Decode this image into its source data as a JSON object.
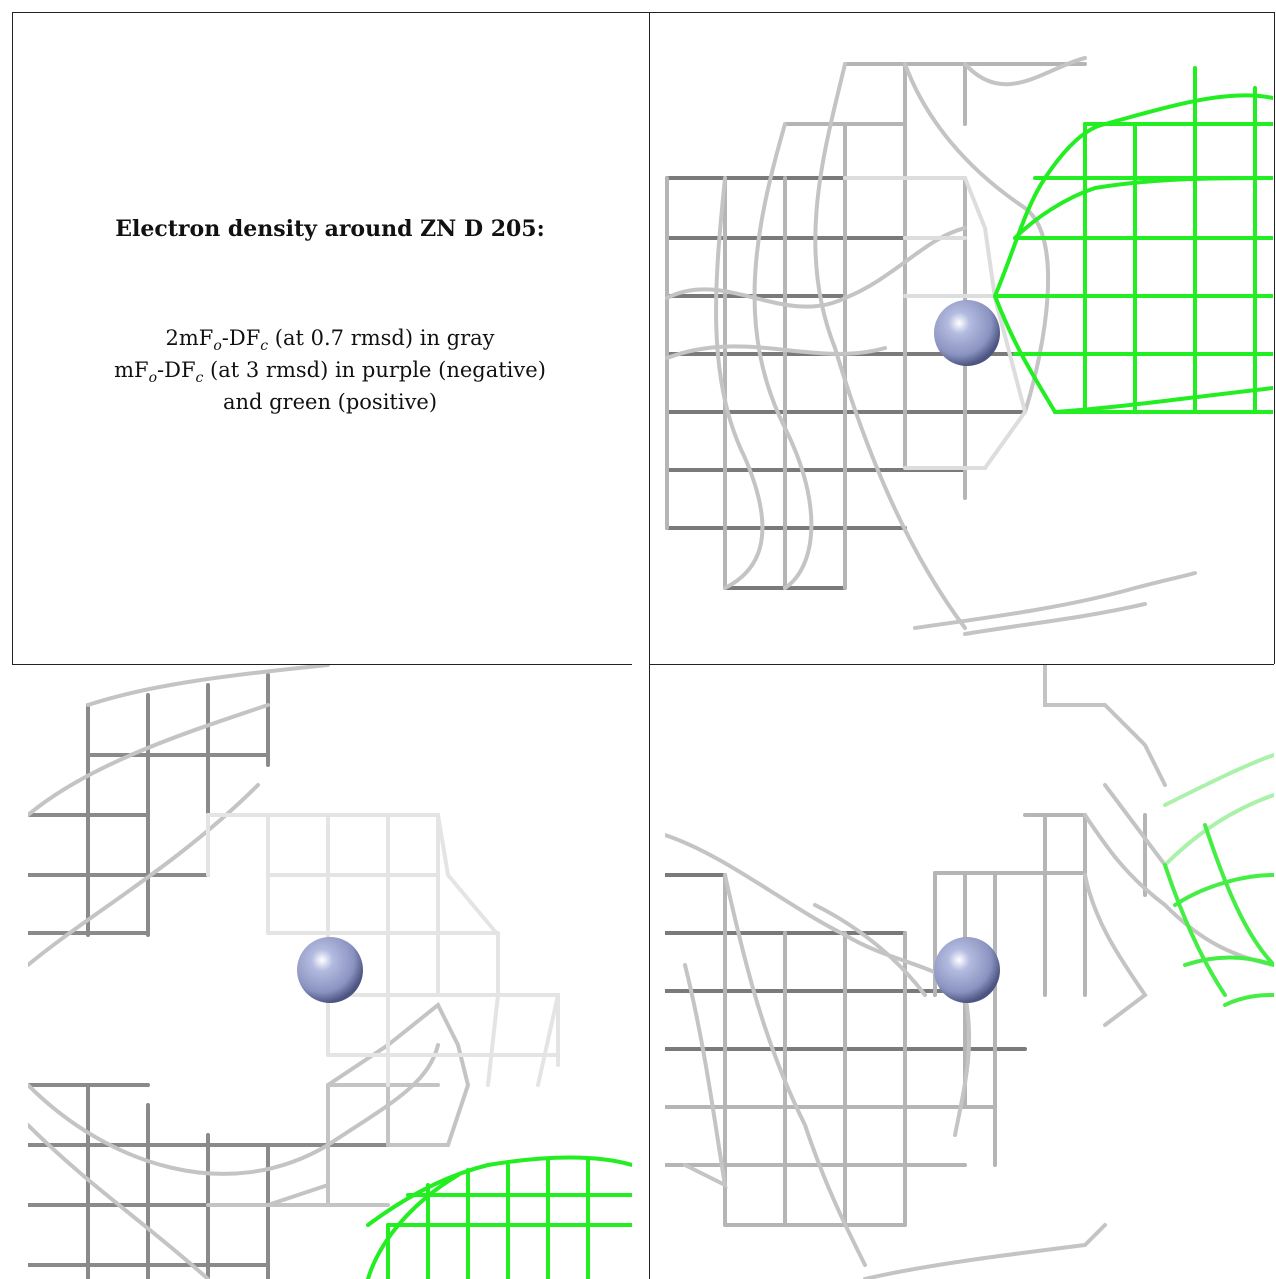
{
  "legend": {
    "title": "Electron density around ZN D 205:",
    "line1": {
      "a": "2mF",
      "o": "o",
      "b": "-DF",
      "c": "c",
      "rest": " (at 0.7 rmsd) in gray"
    },
    "line2": {
      "a": "mF",
      "o": "o",
      "b": "-DF",
      "c": "c",
      "rest": " (at 3 rmsd) in purple (negative)"
    },
    "line3": "and green (positive)"
  },
  "colors": {
    "gray_mesh_dark": "#5a5a5a",
    "gray_mesh_light": "#c8c8c8",
    "positive_mesh": "#22ee22",
    "zinc_atom": "#8a93c0",
    "border": "#222222"
  },
  "panels": [
    {
      "id": "panel-top-right",
      "atom": "zinc-sphere"
    },
    {
      "id": "panel-bottom-left",
      "atom": "zinc-sphere"
    },
    {
      "id": "panel-bottom-right",
      "atom": "zinc-sphere"
    }
  ]
}
